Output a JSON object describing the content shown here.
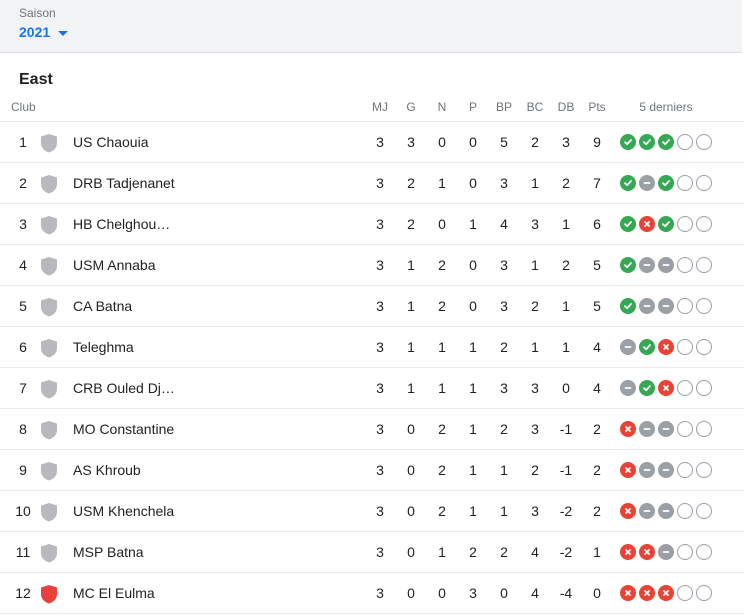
{
  "season": {
    "label": "Saison",
    "value": "2021"
  },
  "group": {
    "title": "East"
  },
  "columns": {
    "club": "Club",
    "mj": "MJ",
    "g": "G",
    "n": "N",
    "p": "P",
    "bp": "BP",
    "bc": "BC",
    "db": "DB",
    "pts": "Pts",
    "form": "5 derniers"
  },
  "colors": {
    "win": "#34a853",
    "draw": "#9aa0a6",
    "loss": "#ea4335",
    "accent": "#1a73e8"
  },
  "rows": [
    {
      "pos": "1",
      "club": "US Chaouia",
      "shield": "gray",
      "mj": "3",
      "g": "3",
      "n": "0",
      "p": "0",
      "bp": "5",
      "bc": "2",
      "db": "3",
      "pts": "9",
      "form": [
        "w",
        "w",
        "w",
        "e",
        "e"
      ]
    },
    {
      "pos": "2",
      "club": "DRB Tadjenanet",
      "shield": "gray",
      "mj": "3",
      "g": "2",
      "n": "1",
      "p": "0",
      "bp": "3",
      "bc": "1",
      "db": "2",
      "pts": "7",
      "form": [
        "w",
        "d",
        "w",
        "e",
        "e"
      ]
    },
    {
      "pos": "3",
      "club": "HB Chelghou…",
      "shield": "gray",
      "mj": "3",
      "g": "2",
      "n": "0",
      "p": "1",
      "bp": "4",
      "bc": "3",
      "db": "1",
      "pts": "6",
      "form": [
        "w",
        "l",
        "w",
        "e",
        "e"
      ]
    },
    {
      "pos": "4",
      "club": "USM Annaba",
      "shield": "gray",
      "mj": "3",
      "g": "1",
      "n": "2",
      "p": "0",
      "bp": "3",
      "bc": "1",
      "db": "2",
      "pts": "5",
      "form": [
        "w",
        "d",
        "d",
        "e",
        "e"
      ]
    },
    {
      "pos": "5",
      "club": "CA Batna",
      "shield": "gray",
      "mj": "3",
      "g": "1",
      "n": "2",
      "p": "0",
      "bp": "3",
      "bc": "2",
      "db": "1",
      "pts": "5",
      "form": [
        "w",
        "d",
        "d",
        "e",
        "e"
      ]
    },
    {
      "pos": "6",
      "club": "Teleghma",
      "shield": "gray",
      "mj": "3",
      "g": "1",
      "n": "1",
      "p": "1",
      "bp": "2",
      "bc": "1",
      "db": "1",
      "pts": "4",
      "form": [
        "d",
        "w",
        "l",
        "e",
        "e"
      ]
    },
    {
      "pos": "7",
      "club": "CRB Ouled Dj…",
      "shield": "gray",
      "mj": "3",
      "g": "1",
      "n": "1",
      "p": "1",
      "bp": "3",
      "bc": "3",
      "db": "0",
      "pts": "4",
      "form": [
        "d",
        "w",
        "l",
        "e",
        "e"
      ]
    },
    {
      "pos": "8",
      "club": "MO Constantine",
      "shield": "gray",
      "mj": "3",
      "g": "0",
      "n": "2",
      "p": "1",
      "bp": "2",
      "bc": "3",
      "db": "-1",
      "pts": "2",
      "form": [
        "l",
        "d",
        "d",
        "e",
        "e"
      ]
    },
    {
      "pos": "9",
      "club": "AS Khroub",
      "shield": "gray",
      "mj": "3",
      "g": "0",
      "n": "2",
      "p": "1",
      "bp": "1",
      "bc": "2",
      "db": "-1",
      "pts": "2",
      "form": [
        "l",
        "d",
        "d",
        "e",
        "e"
      ]
    },
    {
      "pos": "10",
      "club": "USM Khenchela",
      "shield": "gray",
      "mj": "3",
      "g": "0",
      "n": "2",
      "p": "1",
      "bp": "1",
      "bc": "3",
      "db": "-2",
      "pts": "2",
      "form": [
        "l",
        "d",
        "d",
        "e",
        "e"
      ]
    },
    {
      "pos": "11",
      "club": "MSP Batna",
      "shield": "gray",
      "mj": "3",
      "g": "0",
      "n": "1",
      "p": "2",
      "bp": "2",
      "bc": "4",
      "db": "-2",
      "pts": "1",
      "form": [
        "l",
        "l",
        "d",
        "e",
        "e"
      ]
    },
    {
      "pos": "12",
      "club": "MC El Eulma",
      "shield": "red",
      "mj": "3",
      "g": "0",
      "n": "0",
      "p": "3",
      "bp": "0",
      "bc": "4",
      "db": "-4",
      "pts": "0",
      "form": [
        "l",
        "l",
        "l",
        "e",
        "e"
      ]
    }
  ]
}
